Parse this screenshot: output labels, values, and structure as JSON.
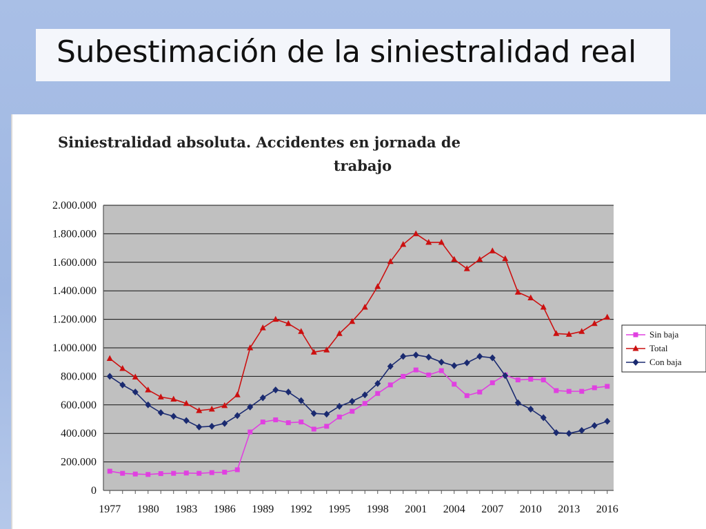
{
  "slide": {
    "title": "Subestimación de la siniestralidad real"
  },
  "chart_data": {
    "type": "line",
    "title_lines": [
      "Siniestralidad absoluta. Accidentes en jornada de",
      "trabajo"
    ],
    "xlabel": "",
    "ylabel": "",
    "x": [
      1977,
      1978,
      1979,
      1980,
      1981,
      1982,
      1983,
      1984,
      1985,
      1986,
      1987,
      1988,
      1989,
      1990,
      1991,
      1992,
      1993,
      1994,
      1995,
      1996,
      1997,
      1998,
      1999,
      2000,
      2001,
      2002,
      2003,
      2004,
      2005,
      2006,
      2007,
      2008,
      2009,
      2010,
      2011,
      2012,
      2013,
      2014,
      2015,
      2016
    ],
    "x_tick_labels": [
      "1977",
      "1980",
      "1983",
      "1986",
      "1989",
      "1992",
      "1995",
      "1998",
      "2001",
      "2004",
      "2007",
      "2010",
      "2013",
      "2016"
    ],
    "x_tick_values": [
      1977,
      1980,
      1983,
      1986,
      1989,
      1992,
      1995,
      1998,
      2001,
      2004,
      2007,
      2010,
      2013,
      2016
    ],
    "ylim": [
      0,
      2000000
    ],
    "y_tick_values": [
      0,
      200000,
      400000,
      600000,
      800000,
      1000000,
      1200000,
      1400000,
      1600000,
      1800000,
      2000000
    ],
    "y_tick_labels": [
      "0",
      "200.000",
      "400.000",
      "600.000",
      "800.000",
      "1.000.000",
      "1.200.000",
      "1.400.000",
      "1.600.000",
      "1.800.000",
      "2.000.000"
    ],
    "grid": "horizontal",
    "plot_background": "#c0c0c0",
    "legend_position": "right",
    "series": [
      {
        "name": "Sin baja",
        "color": "#e040e0",
        "marker": "square",
        "values": [
          135000,
          120000,
          115000,
          112000,
          118000,
          120000,
          122000,
          120000,
          125000,
          128000,
          145000,
          410000,
          480000,
          495000,
          475000,
          480000,
          430000,
          450000,
          515000,
          555000,
          610000,
          680000,
          740000,
          800000,
          845000,
          810000,
          840000,
          745000,
          665000,
          690000,
          755000,
          810000,
          775000,
          780000,
          775000,
          700000,
          695000,
          695000,
          720000,
          730000
        ]
      },
      {
        "name": "Total",
        "color": "#cc1010",
        "marker": "triangle",
        "values": [
          925000,
          855000,
          795000,
          705000,
          655000,
          640000,
          610000,
          560000,
          570000,
          595000,
          670000,
          1000000,
          1140000,
          1200000,
          1170000,
          1115000,
          970000,
          985000,
          1100000,
          1185000,
          1285000,
          1430000,
          1605000,
          1725000,
          1800000,
          1740000,
          1740000,
          1620000,
          1555000,
          1620000,
          1680000,
          1625000,
          1390000,
          1350000,
          1285000,
          1100000,
          1095000,
          1115000,
          1170000,
          1215000
        ]
      },
      {
        "name": "Con baja",
        "color": "#1a2a70",
        "marker": "diamond",
        "values": [
          800000,
          740000,
          690000,
          600000,
          545000,
          520000,
          490000,
          445000,
          450000,
          470000,
          525000,
          585000,
          650000,
          705000,
          690000,
          630000,
          540000,
          535000,
          590000,
          625000,
          670000,
          750000,
          870000,
          940000,
          950000,
          935000,
          900000,
          875000,
          895000,
          940000,
          930000,
          805000,
          615000,
          570000,
          510000,
          405000,
          400000,
          420000,
          455000,
          485000
        ]
      }
    ]
  }
}
